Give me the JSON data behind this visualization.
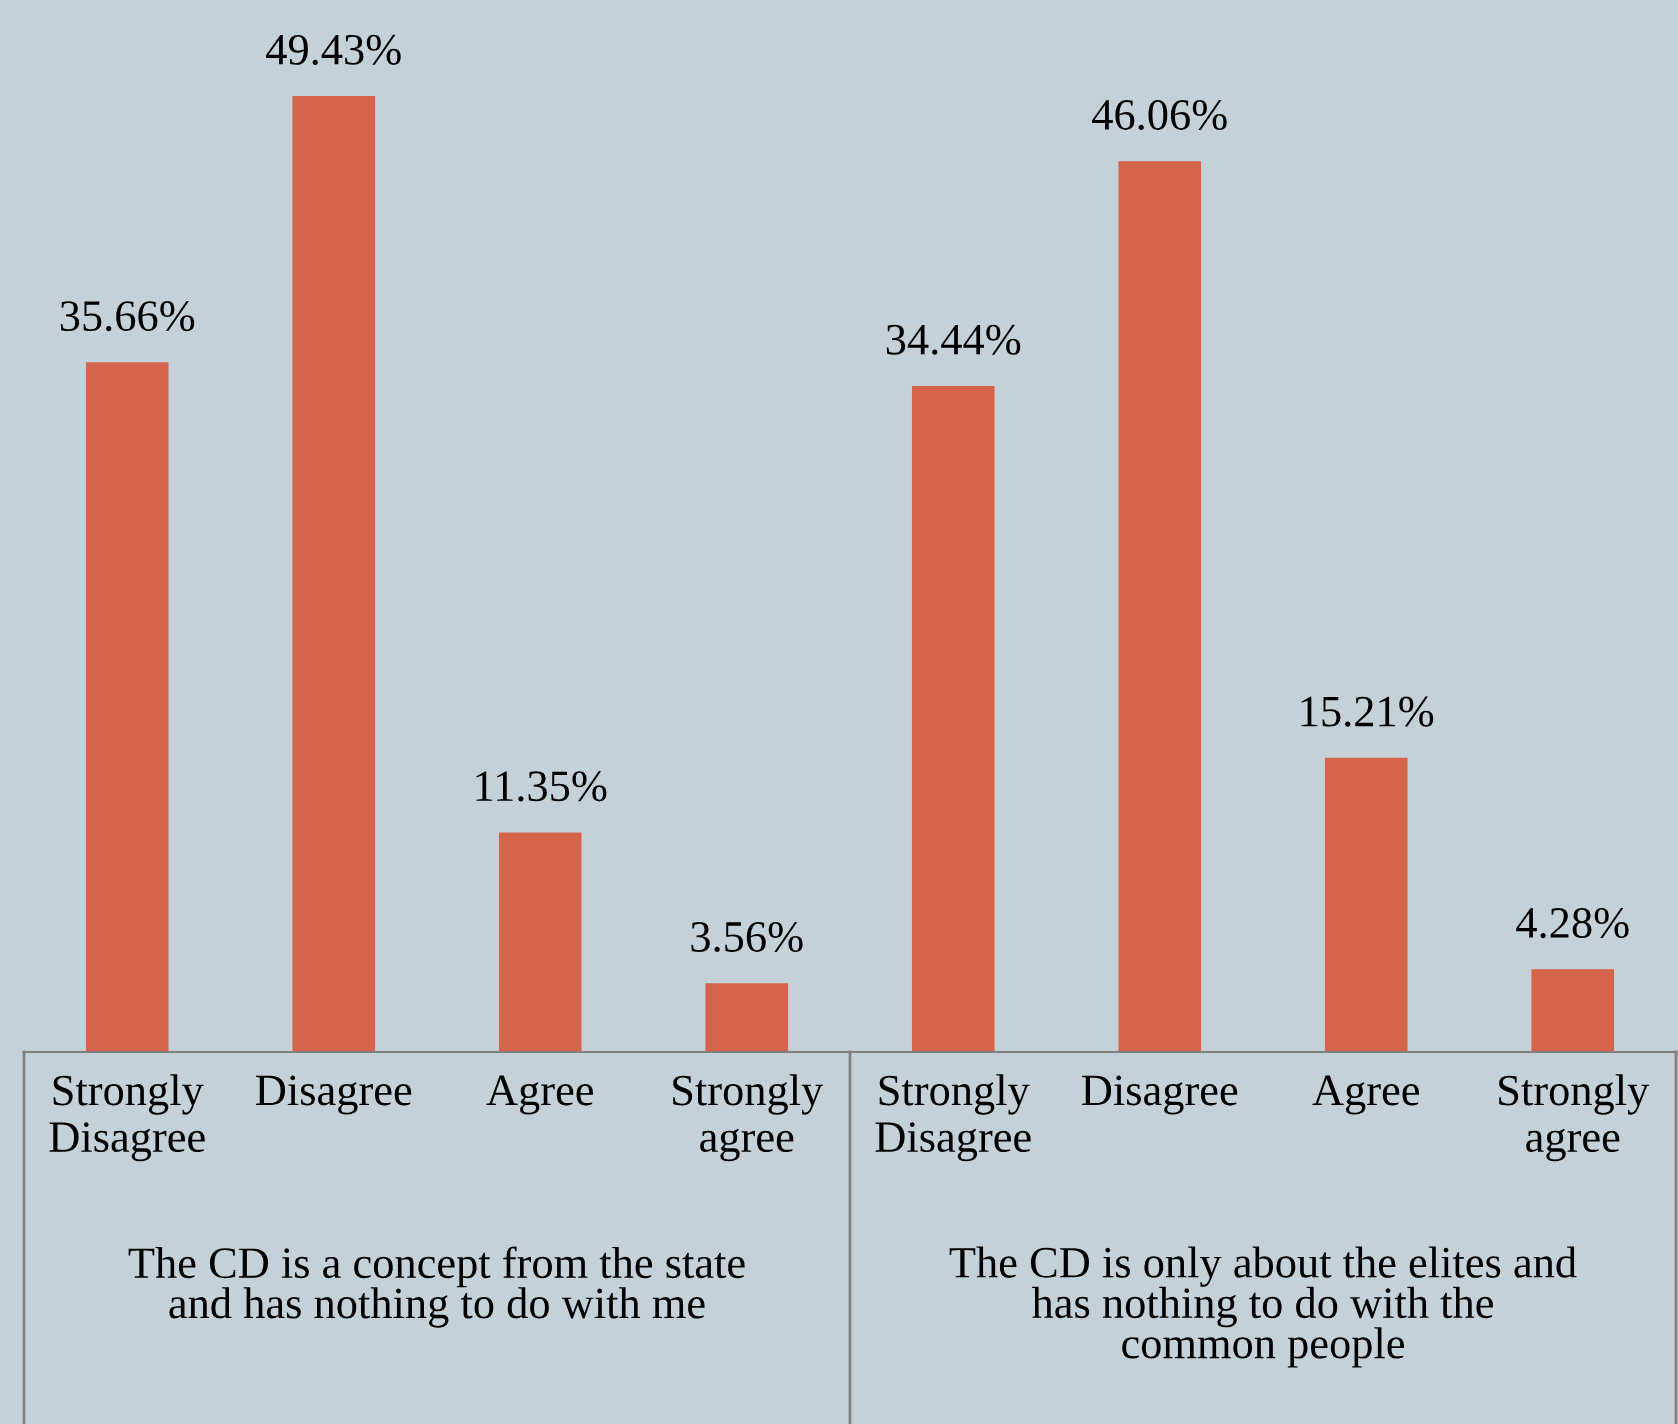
{
  "chart_data": {
    "type": "bar",
    "categories": [
      "Strongly\nDisagree",
      "Disagree",
      "Agree",
      "Strongly\nagree",
      "Strongly\nDisagree",
      "Disagree",
      "Agree",
      "Strongly\nagree"
    ],
    "values": [
      35.66,
      49.43,
      11.35,
      3.56,
      34.44,
      46.06,
      15.21,
      4.28
    ],
    "value_labels": [
      "35.66%",
      "49.43%",
      "11.35%",
      "3.56%",
      "34.44%",
      "46.06%",
      "15.21%",
      "4.28%"
    ],
    "color": "#d4654a",
    "annotations": [
      "The CD is a concept from the state\nand has nothing to do with me",
      "The CD is only about the elites and\nhas nothing to do with the\ncommon people"
    ],
    "grid": false,
    "legend": false
  }
}
